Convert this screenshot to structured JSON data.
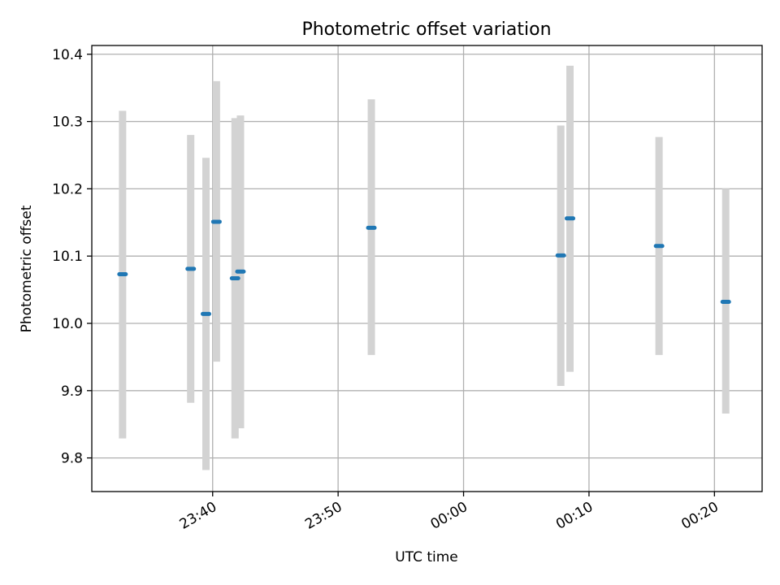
{
  "chart_data": {
    "type": "scatter",
    "title": "Photometric offset variation",
    "xlabel": "UTC time",
    "ylabel": "Photometric offset",
    "ylim": [
      9.75,
      10.413
    ],
    "xlim": [
      "23:30:22",
      "00:23:48"
    ],
    "x_is_time_across_midnight": true,
    "yticks": [
      9.8,
      9.9,
      10.0,
      10.1,
      10.2,
      10.3,
      10.4
    ],
    "ytick_labels": [
      "9.8",
      "9.9",
      "10.0",
      "10.1",
      "10.2",
      "10.3",
      "10.4"
    ],
    "xticks": [
      "23:40",
      "23:50",
      "00:00",
      "00:10",
      "00:20"
    ],
    "grid": true,
    "colors": {
      "points": "#1f77b4",
      "errorbars": "#d3d3d3",
      "grid": "#b0b0b0"
    },
    "points": [
      {
        "time": "23:32:49",
        "y": 10.073,
        "ylow": 9.829,
        "yhigh": 10.316
      },
      {
        "time": "23:38:15",
        "y": 10.081,
        "ylow": 9.882,
        "yhigh": 10.28
      },
      {
        "time": "23:39:28",
        "y": 10.014,
        "ylow": 9.782,
        "yhigh": 10.246
      },
      {
        "time": "23:40:18",
        "y": 10.151,
        "ylow": 9.943,
        "yhigh": 10.36
      },
      {
        "time": "23:41:47",
        "y": 10.067,
        "ylow": 9.829,
        "yhigh": 10.305
      },
      {
        "time": "23:42:13",
        "y": 10.077,
        "ylow": 9.844,
        "yhigh": 10.309
      },
      {
        "time": "23:52:39",
        "y": 10.142,
        "ylow": 9.953,
        "yhigh": 10.333
      },
      {
        "time": "00:07:45",
        "y": 10.101,
        "ylow": 9.907,
        "yhigh": 10.294
      },
      {
        "time": "00:08:29",
        "y": 10.156,
        "ylow": 9.928,
        "yhigh": 10.383
      },
      {
        "time": "00:15:35",
        "y": 10.115,
        "ylow": 9.953,
        "yhigh": 10.277
      },
      {
        "time": "00:20:54",
        "y": 10.032,
        "ylow": 9.866,
        "yhigh": 10.2
      }
    ]
  }
}
